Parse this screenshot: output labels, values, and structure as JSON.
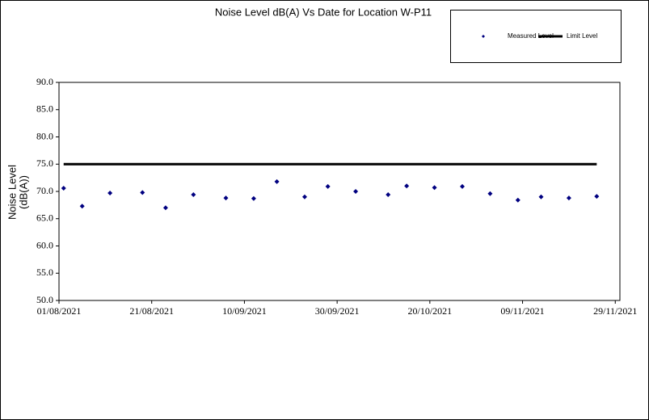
{
  "chart_data": {
    "type": "scatter",
    "title": "Noise Level dB(A) Vs Date for Location W-P11",
    "ylabel": [
      "Noise Level",
      "(dB(A))"
    ],
    "x": [
      "02/08/2021",
      "06/08/2021",
      "12/08/2021",
      "19/08/2021",
      "24/08/2021",
      "30/08/2021",
      "06/09/2021",
      "12/09/2021",
      "17/09/2021",
      "23/09/2021",
      "28/09/2021",
      "04/10/2021",
      "11/10/2021",
      "15/10/2021",
      "21/10/2021",
      "27/10/2021",
      "02/11/2021",
      "08/11/2021",
      "13/11/2021",
      "19/11/2021",
      "25/11/2021"
    ],
    "series": [
      {
        "name": "Measured Level",
        "color": "#000080",
        "values": [
          70.6,
          67.3,
          69.7,
          69.8,
          67.0,
          69.4,
          68.8,
          68.7,
          71.8,
          69.0,
          70.9,
          70.0,
          69.4,
          71.0,
          70.7,
          70.9,
          69.6,
          68.4,
          69.0,
          68.8,
          69.1
        ]
      },
      {
        "name": "Limit Level",
        "color": "#000000",
        "values": [
          75,
          75,
          75,
          75,
          75,
          75,
          75,
          75,
          75,
          75,
          75,
          75,
          75,
          75,
          75,
          75,
          75,
          75,
          75,
          75,
          75
        ]
      }
    ],
    "xlim": [
      "01/08/2021",
      "30/11/2021"
    ],
    "xticks": [
      "01/08/2021",
      "21/08/2021",
      "10/09/2021",
      "30/09/2021",
      "20/10/2021",
      "09/11/2021",
      "29/11/2021"
    ],
    "ylim": [
      50,
      90
    ],
    "yticks": [
      {
        "value": 50,
        "label": "50.0"
      },
      {
        "value": 55,
        "label": "55.0"
      },
      {
        "value": 60,
        "label": "60.0"
      },
      {
        "value": 65,
        "label": "65.0"
      },
      {
        "value": 70,
        "label": "70.0"
      },
      {
        "value": 75,
        "label": "75.0"
      },
      {
        "value": 80,
        "label": "80.0"
      },
      {
        "value": 85,
        "label": "85.0"
      },
      {
        "value": 90,
        "label": "90.0"
      }
    ],
    "grid": false
  }
}
